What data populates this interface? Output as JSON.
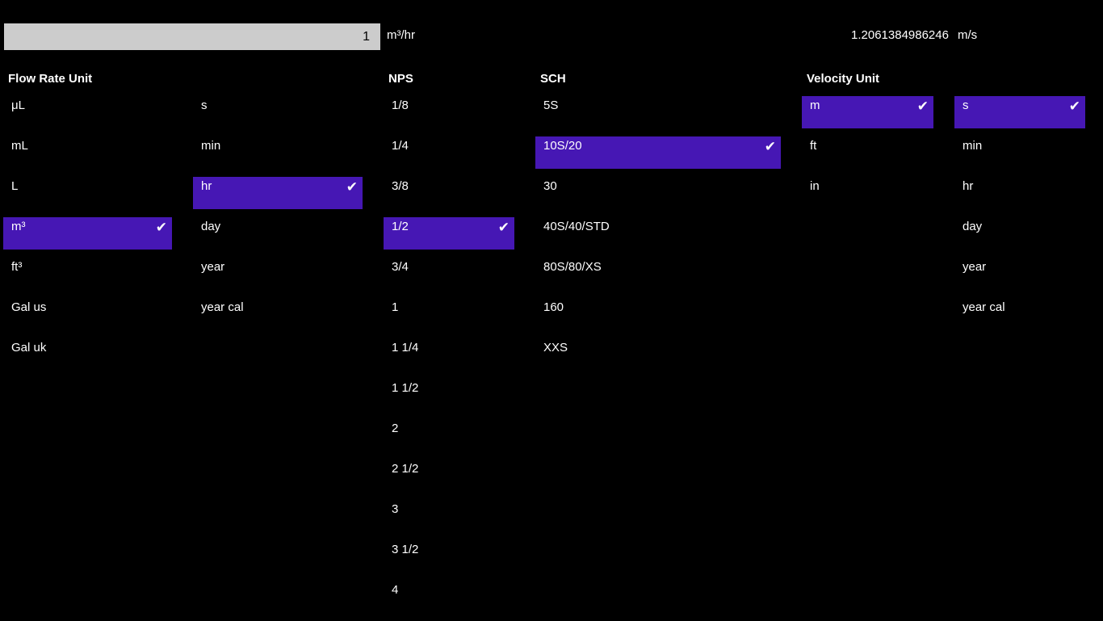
{
  "input": {
    "value": "1",
    "unit": "m³/hr"
  },
  "result": {
    "value": "1.2061384986246",
    "unit": "m/s"
  },
  "headers": {
    "flow": "Flow Rate Unit",
    "nps": "NPS",
    "sch": "SCH",
    "velocity": "Velocity Unit"
  },
  "accent": "#4617b4",
  "check_icon": "✔",
  "columns": {
    "vol": {
      "items": [
        "μL",
        "mL",
        "L",
        "m³",
        "ft³",
        "Gal us",
        "Gal uk"
      ],
      "selected": 3
    },
    "time": {
      "items": [
        "s",
        "min",
        "hr",
        "day",
        "year",
        "year cal"
      ],
      "selected": 2
    },
    "nps": {
      "items": [
        "1/8",
        "1/4",
        "3/8",
        "1/2",
        "3/4",
        "1",
        "1 1/4",
        "1 1/2",
        "2",
        "2 1/2",
        "3",
        "3 1/2",
        "4"
      ],
      "selected": 3
    },
    "sch": {
      "items": [
        "5S",
        "10S/20",
        "30",
        "40S/40/STD",
        "80S/80/XS",
        "160",
        "XXS"
      ],
      "selected": 1
    },
    "vlen": {
      "items": [
        "m",
        "ft",
        "in"
      ],
      "selected": 0
    },
    "vtime": {
      "items": [
        "s",
        "min",
        "hr",
        "day",
        "year",
        "year cal"
      ],
      "selected": 0
    }
  }
}
